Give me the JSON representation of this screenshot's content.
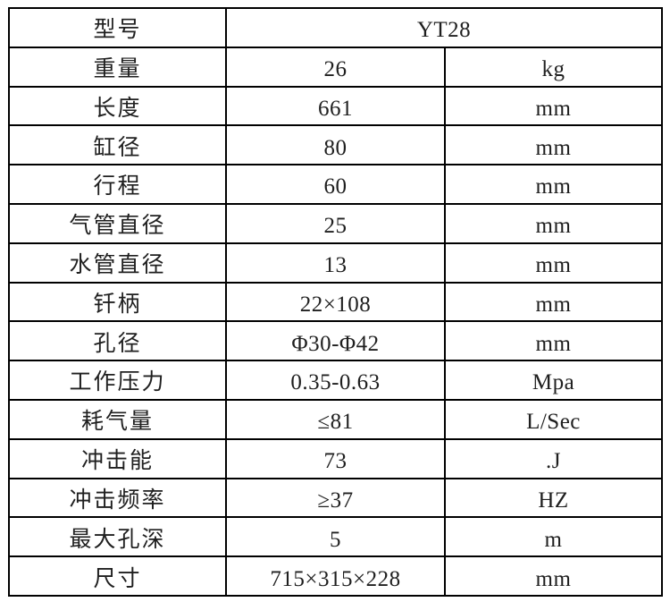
{
  "colors": {
    "background": "#ffffff",
    "border": "#000000",
    "text": "#1f1f1f"
  },
  "table": {
    "model_row": {
      "label": "型号",
      "value": "YT28"
    },
    "rows": [
      {
        "label": "重量",
        "value": "26",
        "unit": "kg"
      },
      {
        "label": "长度",
        "value": "661",
        "unit": "mm"
      },
      {
        "label": "缸径",
        "value": "80",
        "unit": "mm"
      },
      {
        "label": "行程",
        "value": "60",
        "unit": "mm"
      },
      {
        "label": "气管直径",
        "value": "25",
        "unit": "mm"
      },
      {
        "label": "水管直径",
        "value": "13",
        "unit": "mm"
      },
      {
        "label": "钎柄",
        "value": "22×108",
        "unit": "mm"
      },
      {
        "label": "孔径",
        "value": "Φ30-Φ42",
        "unit": "mm"
      },
      {
        "label": "工作压力",
        "value": "0.35-0.63",
        "unit": "Mpa"
      },
      {
        "label": "耗气量",
        "value": "≤81",
        "unit": "L/Sec"
      },
      {
        "label": "冲击能",
        "value": "73",
        "unit": ".J"
      },
      {
        "label": "冲击频率",
        "value": "≥37",
        "unit": "HZ"
      },
      {
        "label": "最大孔深",
        "value": "5",
        "unit": "m"
      },
      {
        "label": "尺寸",
        "value": "715×315×228",
        "unit": "mm"
      }
    ]
  }
}
